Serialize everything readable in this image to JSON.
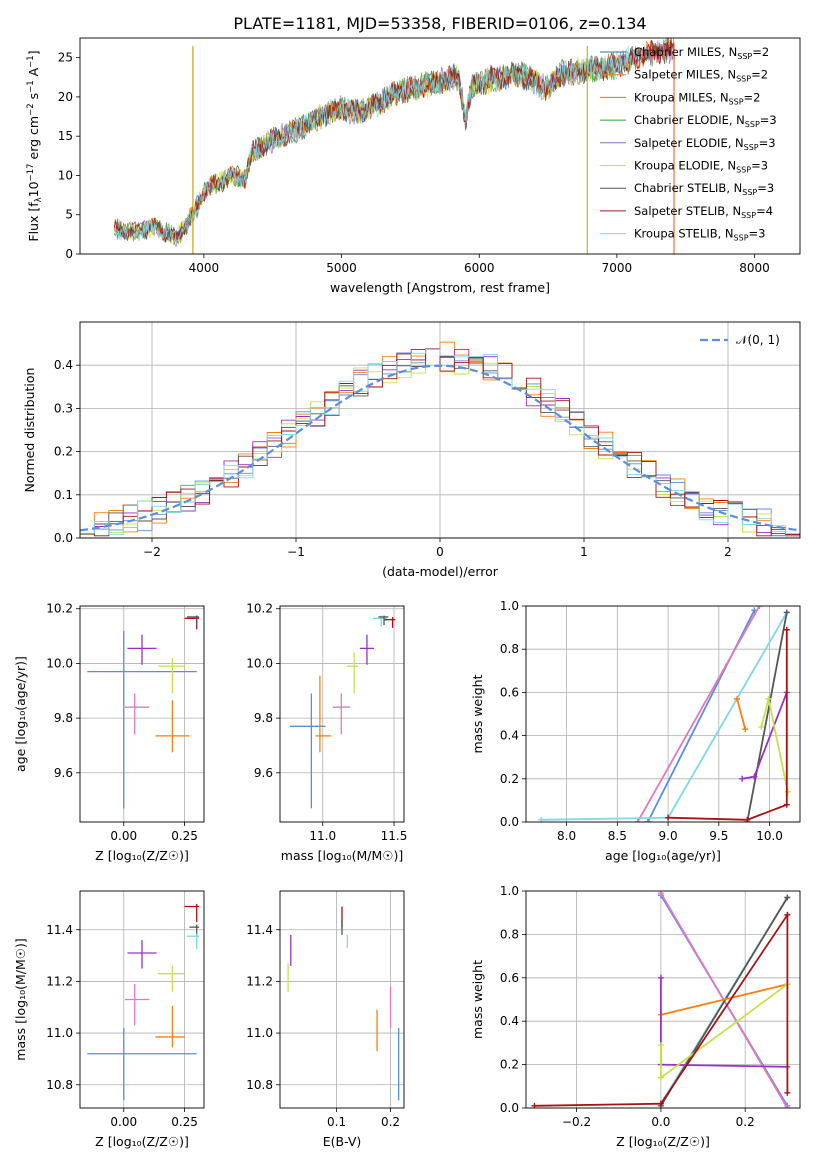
{
  "figure_title": "PLATE=1181, MJD=53358, FIBERID=0106, z=0.134",
  "chart_data": [
    {
      "id": "spectrum",
      "type": "line",
      "title": "PLATE=1181, MJD=53358, FIBERID=0106, z=0.134",
      "xlabel": "wavelength [Angstrom, rest frame]",
      "ylabel_parts": [
        "Flux [f",
        "λ",
        "10",
        "−17",
        " erg cm",
        "−2",
        " s",
        "−1",
        " A",
        "−1",
        "]"
      ],
      "xlim": [
        3100,
        8330
      ],
      "ylim": [
        0,
        27.5
      ],
      "xticks": [
        4000,
        5000,
        6000,
        7000,
        8000
      ],
      "yticks": [
        0,
        5,
        10,
        15,
        20,
        25
      ],
      "grid": false,
      "legend_position": "top-right",
      "continuum": [
        [
          3350,
          3.2
        ],
        [
          3500,
          2.8
        ],
        [
          3650,
          3.5
        ],
        [
          3800,
          2.0
        ],
        [
          3900,
          4.5
        ],
        [
          3950,
          6.0
        ],
        [
          4000,
          8.0
        ],
        [
          4100,
          9.0
        ],
        [
          4200,
          10.0
        ],
        [
          4300,
          9.5
        ],
        [
          4350,
          13.0
        ],
        [
          4500,
          14.5
        ],
        [
          4700,
          16.0
        ],
        [
          4900,
          18.0
        ],
        [
          5000,
          18.5
        ],
        [
          5100,
          18.0
        ],
        [
          5200,
          18.5
        ],
        [
          5300,
          19.5
        ],
        [
          5400,
          20.5
        ],
        [
          5500,
          21.0
        ],
        [
          5700,
          22.0
        ],
        [
          5850,
          22.5
        ],
        [
          5900,
          17.0
        ],
        [
          5950,
          21.5
        ],
        [
          6100,
          22.3
        ],
        [
          6300,
          22.8
        ],
        [
          6500,
          21.0
        ],
        [
          6600,
          23.0
        ],
        [
          6800,
          23.5
        ],
        [
          7000,
          24.0
        ],
        [
          7200,
          25.5
        ],
        [
          7400,
          26.0
        ]
      ],
      "spikes": [
        {
          "x": 3920,
          "color": "#d4a017"
        },
        {
          "x": 6785,
          "color": "#bcbd22"
        },
        {
          "x": 7415,
          "color": "#ff6a3d"
        }
      ],
      "series": [
        {
          "name": "Chabrier MILES, N",
          "sub": "SSP",
          "suffix": "=2",
          "color": "#1f77b4"
        },
        {
          "name": "Salpeter MILES, N",
          "sub": "SSP",
          "suffix": "=2",
          "color": "#ff7f0e"
        },
        {
          "name": "Kroupa MILES, N",
          "sub": "SSP",
          "suffix": "=2",
          "color": "#b8860b"
        },
        {
          "name": "Chabrier ELODIE, N",
          "sub": "SSP",
          "suffix": "=3",
          "color": "#2ca02c"
        },
        {
          "name": "Salpeter ELODIE, N",
          "sub": "SSP",
          "suffix": "=3",
          "color": "#9467bd"
        },
        {
          "name": "Kroupa ELODIE, N",
          "sub": "SSP",
          "suffix": "=3",
          "color": "#dbdb40"
        },
        {
          "name": "Chabrier STELIB, N",
          "sub": "SSP",
          "suffix": "=3",
          "color": "#555555"
        },
        {
          "name": "Salpeter STELIB, N",
          "sub": "SSP",
          "suffix": "=4",
          "color": "#aa1111"
        },
        {
          "name": "Kroupa STELIB, N",
          "sub": "SSP",
          "suffix": "=3",
          "color": "#7fd7e8"
        }
      ]
    },
    {
      "id": "residuals",
      "type": "histogram",
      "xlabel": "(data-model)/error",
      "ylabel": "Normed distribution",
      "xlim": [
        -2.5,
        2.5
      ],
      "ylim": [
        0,
        0.5
      ],
      "xticks": [
        -2,
        -1,
        0,
        1,
        2
      ],
      "xtick_labels": [
        "−2",
        "−1",
        "0",
        "1",
        "2"
      ],
      "yticks": [
        0.0,
        0.1,
        0.2,
        0.3,
        0.4
      ],
      "ytick_labels": [
        "0.0",
        "0.1",
        "0.2",
        "0.3",
        "0.4"
      ],
      "grid": true,
      "reference_curve": {
        "label": "𝒩(0, 1)",
        "mean": 0,
        "sigma": 1,
        "color": "#5a8ee0",
        "dashed": true
      },
      "legend_position": "top-right",
      "bin_width": 0.1,
      "series_colors": [
        "#5a8ee0",
        "#ff7f0e",
        "#9b30c8",
        "#c6e24a",
        "#555555",
        "#aa1111",
        "#7fd7e8"
      ]
    },
    {
      "id": "age_vs_Z",
      "type": "errorbar",
      "xlabel": "Z [log₁₀(Z/Z☉)]",
      "ylabel": "age  [log₁₀(age/yr)]",
      "xlim": [
        -0.18,
        0.33
      ],
      "ylim": [
        9.42,
        10.21
      ],
      "xticks": [
        0.0,
        0.25
      ],
      "xtick_labels": [
        "0.00",
        "0.25"
      ],
      "yticks": [
        9.6,
        9.8,
        10.0,
        10.2
      ],
      "ytick_labels": [
        "9.6",
        "9.8",
        "10.0",
        "10.2"
      ],
      "grid": true,
      "points": [
        {
          "x": 0.0,
          "xerr": [
            0.15,
            0.3
          ],
          "y": 9.97,
          "yerr": [
            0.5,
            0.15
          ],
          "color": "#5a8ee0"
        },
        {
          "x": 0.2,
          "xerr": [
            0.07,
            0.07
          ],
          "y": 9.735,
          "yerr": [
            0.06,
            0.13
          ],
          "color": "#ff7f0e"
        },
        {
          "x": 0.045,
          "xerr": [
            0.04,
            0.06
          ],
          "y": 9.84,
          "yerr": [
            0.1,
            0.05
          ],
          "color": "#e377c2"
        },
        {
          "x": 0.075,
          "xerr": [
            0.06,
            0.06
          ],
          "y": 10.055,
          "yerr": [
            0.06,
            0.05
          ],
          "color": "#9b30c8"
        },
        {
          "x": 0.2,
          "xerr": [
            0.06,
            0.05
          ],
          "y": 9.99,
          "yerr": [
            0.1,
            0.03
          ],
          "color": "#c6e24a"
        },
        {
          "x": 0.3,
          "xerr": [
            0.05,
            0.01
          ],
          "y": 10.165,
          "yerr": [
            0.04,
            0.01
          ],
          "color": "#aa1111"
        },
        {
          "x": 0.3,
          "xerr": [
            0.04,
            0.01
          ],
          "y": 10.17,
          "yerr": [
            0.03,
            0.005
          ],
          "color": "#555555"
        }
      ]
    },
    {
      "id": "age_vs_mass",
      "type": "errorbar",
      "xlabel": "mass [log₁₀(M/M☉)]",
      "ylabel": "",
      "xlim": [
        10.7,
        11.57
      ],
      "ylim": [
        9.42,
        10.21
      ],
      "xticks": [
        11.0,
        11.5
      ],
      "xtick_labels": [
        "11.0",
        "11.5"
      ],
      "yticks": [
        9.6,
        9.8,
        10.0,
        10.2
      ],
      "ytick_labels": [
        "9.6",
        "9.8",
        "10.0",
        "10.2"
      ],
      "grid": true,
      "points": [
        {
          "x": 10.92,
          "xerr": [
            0.15,
            0.1
          ],
          "y": 9.77,
          "yerr": [
            0.3,
            0.12
          ],
          "color": "#5a8ee0"
        },
        {
          "x": 10.98,
          "xerr": [
            0.03,
            0.08
          ],
          "y": 9.735,
          "yerr": [
            0.06,
            0.22
          ],
          "color": "#ff7f0e"
        },
        {
          "x": 11.13,
          "xerr": [
            0.06,
            0.06
          ],
          "y": 9.84,
          "yerr": [
            0.1,
            0.05
          ],
          "color": "#e377c2"
        },
        {
          "x": 11.31,
          "xerr": [
            0.05,
            0.05
          ],
          "y": 10.055,
          "yerr": [
            0.06,
            0.05
          ],
          "color": "#9b30c8"
        },
        {
          "x": 11.22,
          "xerr": [
            0.05,
            0.03
          ],
          "y": 9.99,
          "yerr": [
            0.1,
            0.05
          ],
          "color": "#c6e24a"
        },
        {
          "x": 11.49,
          "xerr": [
            0.06,
            0.02
          ],
          "y": 10.16,
          "yerr": [
            0.03,
            0.01
          ],
          "color": "#aa1111"
        },
        {
          "x": 11.41,
          "xerr": [
            0.06,
            0.04
          ],
          "y": 10.165,
          "yerr": [
            0.03,
            0.01
          ],
          "color": "#7fd7e8"
        },
        {
          "x": 11.43,
          "xerr": [
            0.04,
            0.03
          ],
          "y": 10.17,
          "yerr": [
            0.03,
            0.005
          ],
          "color": "#555555"
        }
      ]
    },
    {
      "id": "weight_vs_age",
      "type": "line",
      "xlabel": "age  [log₁₀(age/yr)]",
      "ylabel": "mass weight",
      "xlim": [
        7.6,
        10.3
      ],
      "ylim": [
        0,
        1
      ],
      "xticks": [
        8.0,
        8.5,
        9.0,
        9.5,
        10.0
      ],
      "xtick_labels": [
        "8.0",
        "8.5",
        "9.0",
        "9.5",
        "10.0"
      ],
      "yticks": [
        0.0,
        0.2,
        0.4,
        0.6,
        0.8,
        1.0
      ],
      "ytick_labels": [
        "0.0",
        "0.2",
        "0.4",
        "0.6",
        "0.8",
        "1.0"
      ],
      "grid": true,
      "series": [
        {
          "color": "#5a8ee0",
          "points": [
            [
              8.8,
              0.0
            ],
            [
              9.85,
              0.98
            ]
          ]
        },
        {
          "color": "#e377c2",
          "points": [
            [
              8.7,
              0.0
            ],
            [
              9.9,
              1.0
            ]
          ]
        },
        {
          "color": "#7fd7e8",
          "points": [
            [
              7.75,
              0.01
            ],
            [
              9.0,
              0.02
            ],
            [
              10.17,
              0.97
            ]
          ]
        },
        {
          "color": "#555555",
          "points": [
            [
              9.78,
              0.0
            ],
            [
              10.17,
              0.97
            ]
          ]
        },
        {
          "color": "#ff7f0e",
          "points": [
            [
              9.68,
              0.57
            ],
            [
              9.76,
              0.43
            ]
          ]
        },
        {
          "color": "#9b30c8",
          "points": [
            [
              9.73,
              0.2
            ],
            [
              9.85,
              0.21
            ],
            [
              10.17,
              0.6
            ]
          ]
        },
        {
          "color": "#c6e24a",
          "points": [
            [
              9.92,
              0.44
            ],
            [
              9.99,
              0.57
            ],
            [
              10.18,
              0.14
            ]
          ]
        },
        {
          "color": "#aa1111",
          "points": [
            [
              9.0,
              0.02
            ],
            [
              9.78,
              0.01
            ],
            [
              10.17,
              0.08
            ],
            [
              10.17,
              0.89
            ]
          ]
        }
      ]
    },
    {
      "id": "mass_vs_Z",
      "type": "errorbar",
      "xlabel": "Z [log₁₀(Z/Z☉)]",
      "ylabel": "mass [log₁₀(M/M☉)]",
      "xlim": [
        -0.18,
        0.33
      ],
      "ylim": [
        10.71,
        11.55
      ],
      "xticks": [
        0.0,
        0.25
      ],
      "xtick_labels": [
        "0.00",
        "0.25"
      ],
      "yticks": [
        10.8,
        11.0,
        11.2,
        11.4
      ],
      "ytick_labels": [
        "10.8",
        "11.0",
        "11.2",
        "11.4"
      ],
      "grid": true,
      "points": [
        {
          "x": 0.0,
          "xerr": [
            0.15,
            0.3
          ],
          "y": 10.92,
          "yerr": [
            0.18,
            0.1
          ],
          "color": "#5a8ee0"
        },
        {
          "x": 0.2,
          "xerr": [
            0.07,
            0.05
          ],
          "y": 10.985,
          "yerr": [
            0.04,
            0.12
          ],
          "color": "#ff7f0e"
        },
        {
          "x": 0.045,
          "xerr": [
            0.04,
            0.06
          ],
          "y": 11.13,
          "yerr": [
            0.1,
            0.06
          ],
          "color": "#e377c2"
        },
        {
          "x": 0.075,
          "xerr": [
            0.06,
            0.06
          ],
          "y": 11.31,
          "yerr": [
            0.06,
            0.05
          ],
          "color": "#9b30c8"
        },
        {
          "x": 0.2,
          "xerr": [
            0.06,
            0.05
          ],
          "y": 11.23,
          "yerr": [
            0.07,
            0.03
          ],
          "color": "#c6e24a"
        },
        {
          "x": 0.3,
          "xerr": [
            0.05,
            0.01
          ],
          "y": 11.49,
          "yerr": [
            0.06,
            0.01
          ],
          "color": "#aa1111"
        },
        {
          "x": 0.3,
          "xerr": [
            0.03,
            0.01
          ],
          "y": 11.41,
          "yerr": [
            0.04,
            0.01
          ],
          "color": "#555555"
        },
        {
          "x": 0.3,
          "xerr": [
            0.04,
            0.01
          ],
          "y": 11.375,
          "yerr": [
            0.05,
            0.01
          ],
          "color": "#7fd7e8"
        }
      ]
    },
    {
      "id": "mass_vs_ebv",
      "type": "errorbar",
      "xlabel": "E(B-V)",
      "ylabel": "",
      "xlim": [
        -0.005,
        0.225
      ],
      "ylim": [
        10.71,
        11.55
      ],
      "xticks": [
        0.1,
        0.2
      ],
      "xtick_labels": [
        "0.1",
        "0.2"
      ],
      "yticks": [
        10.8,
        11.0,
        11.2,
        11.4
      ],
      "ytick_labels": [
        "10.8",
        "11.0",
        "11.2",
        "11.4"
      ],
      "grid": true,
      "points": [
        {
          "x": 0.215,
          "xerr": [
            0,
            0
          ],
          "y": 10.92,
          "yerr": [
            0.18,
            0.1
          ],
          "color": "#5a8ee0"
        },
        {
          "x": 0.175,
          "xerr": [
            0,
            0
          ],
          "y": 11.01,
          "yerr": [
            0.08,
            0.08
          ],
          "color": "#ff7f0e"
        },
        {
          "x": 0.2,
          "xerr": [
            0,
            0
          ],
          "y": 11.12,
          "yerr": [
            0.1,
            0.06
          ],
          "color": "#e377c2"
        },
        {
          "x": 0.015,
          "xerr": [
            0,
            0
          ],
          "y": 11.31,
          "yerr": [
            0.05,
            0.07
          ],
          "color": "#9b30c8"
        },
        {
          "x": 0.01,
          "xerr": [
            0,
            0
          ],
          "y": 11.21,
          "yerr": [
            0.05,
            0.06
          ],
          "color": "#c6e24a"
        },
        {
          "x": 0.11,
          "xerr": [
            0,
            0
          ],
          "y": 11.45,
          "yerr": [
            0.04,
            0.04
          ],
          "color": "#aa1111"
        },
        {
          "x": 0.11,
          "xerr": [
            0,
            0
          ],
          "y": 11.42,
          "yerr": [
            0.04,
            0.02
          ],
          "color": "#555555"
        },
        {
          "x": 0.12,
          "xerr": [
            0,
            0
          ],
          "y": 11.36,
          "yerr": [
            0.03,
            0.02
          ],
          "color": "#7fd7e8"
        }
      ]
    },
    {
      "id": "weight_vs_Z",
      "type": "line",
      "xlabel": "Z [log₁₀(Z/Z☉)]",
      "ylabel": "mass weight",
      "xlim": [
        -0.32,
        0.33
      ],
      "ylim": [
        0,
        1
      ],
      "xticks": [
        -0.2,
        0.0,
        0.2
      ],
      "xtick_labels": [
        "−0.2",
        "0.0",
        "0.2"
      ],
      "yticks": [
        0.0,
        0.2,
        0.4,
        0.6,
        0.8,
        1.0
      ],
      "ytick_labels": [
        "0.0",
        "0.2",
        "0.4",
        "0.6",
        "0.8",
        "1.0"
      ],
      "grid": true,
      "series": [
        {
          "color": "#5a8ee0",
          "points": [
            [
              0.0,
              0.98
            ],
            [
              0.3,
              0.01
            ]
          ]
        },
        {
          "color": "#e377c2",
          "points": [
            [
              0.0,
              0.99
            ],
            [
              0.3,
              0.0
            ]
          ]
        },
        {
          "color": "#7fd7e8",
          "points": [
            [
              0.0,
              0.02
            ],
            [
              0.3,
              0.97
            ]
          ]
        },
        {
          "color": "#555555",
          "points": [
            [
              0.0,
              0.01
            ],
            [
              0.3,
              0.97
            ]
          ]
        },
        {
          "color": "#ff7f0e",
          "points": [
            [
              0.0,
              0.43
            ],
            [
              0.3,
              0.57
            ]
          ]
        },
        {
          "color": "#9b30c8",
          "points": [
            [
              0.0,
              0.6
            ],
            [
              0.0,
              0.2
            ],
            [
              0.3,
              0.19
            ]
          ]
        },
        {
          "color": "#c6e24a",
          "points": [
            [
              0.0,
              0.29
            ],
            [
              0.0,
              0.14
            ],
            [
              0.3,
              0.57
            ]
          ]
        },
        {
          "color": "#aa1111",
          "points": [
            [
              -0.3,
              0.01
            ],
            [
              0.0,
              0.02
            ],
            [
              0.3,
              0.89
            ],
            [
              0.3,
              0.07
            ]
          ]
        }
      ]
    }
  ]
}
